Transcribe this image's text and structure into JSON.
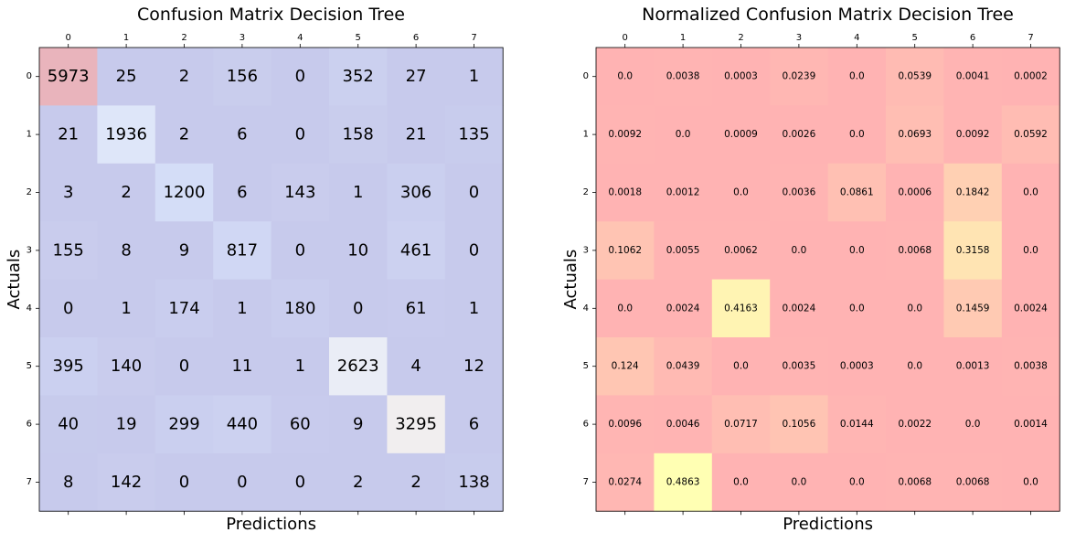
{
  "chart_data": [
    {
      "type": "heatmap",
      "title": "Confusion Matrix Decision Tree",
      "xlabel": "Predictions",
      "ylabel": "Actuals",
      "x_ticks": [
        "0",
        "1",
        "2",
        "3",
        "4",
        "5",
        "6",
        "7"
      ],
      "y_ticks": [
        "0",
        "1",
        "2",
        "3",
        "4",
        "5",
        "6",
        "7"
      ],
      "colormap": "coolwarm",
      "values": [
        [
          "5973",
          "25",
          "2",
          "156",
          "0",
          "352",
          "27",
          "1"
        ],
        [
          "21",
          "1936",
          "2",
          "6",
          "0",
          "158",
          "21",
          "135"
        ],
        [
          "3",
          "2",
          "1200",
          "6",
          "143",
          "1",
          "306",
          "0"
        ],
        [
          "155",
          "8",
          "9",
          "817",
          "0",
          "10",
          "461",
          "0"
        ],
        [
          "0",
          "1",
          "174",
          "1",
          "180",
          "0",
          "61",
          "1"
        ],
        [
          "395",
          "140",
          "0",
          "11",
          "1",
          "2623",
          "4",
          "12"
        ],
        [
          "40",
          "19",
          "299",
          "440",
          "60",
          "9",
          "3295",
          "6"
        ],
        [
          "8",
          "142",
          "0",
          "0",
          "0",
          "2",
          "2",
          "138"
        ]
      ]
    },
    {
      "type": "heatmap",
      "title": "Normalized Confusion Matrix Decision Tree",
      "xlabel": "Predictions",
      "ylabel": "Actuals",
      "x_ticks": [
        "0",
        "1",
        "2",
        "3",
        "4",
        "5",
        "6",
        "7"
      ],
      "y_ticks": [
        "0",
        "1",
        "2",
        "3",
        "4",
        "5",
        "6",
        "7"
      ],
      "colormap": "spring",
      "values": [
        [
          "0.0",
          "0.0038",
          "0.0003",
          "0.0239",
          "0.0",
          "0.0539",
          "0.0041",
          "0.0002"
        ],
        [
          "0.0092",
          "0.0",
          "0.0009",
          "0.0026",
          "0.0",
          "0.0693",
          "0.0092",
          "0.0592"
        ],
        [
          "0.0018",
          "0.0012",
          "0.0",
          "0.0036",
          "0.0861",
          "0.0006",
          "0.1842",
          "0.0"
        ],
        [
          "0.1062",
          "0.0055",
          "0.0062",
          "0.0",
          "0.0",
          "0.0068",
          "0.3158",
          "0.0"
        ],
        [
          "0.0",
          "0.0024",
          "0.4163",
          "0.0024",
          "0.0",
          "0.0",
          "0.1459",
          "0.0024"
        ],
        [
          "0.124",
          "0.0439",
          "0.0",
          "0.0035",
          "0.0003",
          "0.0",
          "0.0013",
          "0.0038"
        ],
        [
          "0.0096",
          "0.0046",
          "0.0717",
          "0.1056",
          "0.0144",
          "0.0022",
          "0.0",
          "0.0014"
        ],
        [
          "0.0274",
          "0.4863",
          "0.0",
          "0.0",
          "0.0",
          "0.0068",
          "0.0068",
          "0.0"
        ]
      ]
    }
  ]
}
